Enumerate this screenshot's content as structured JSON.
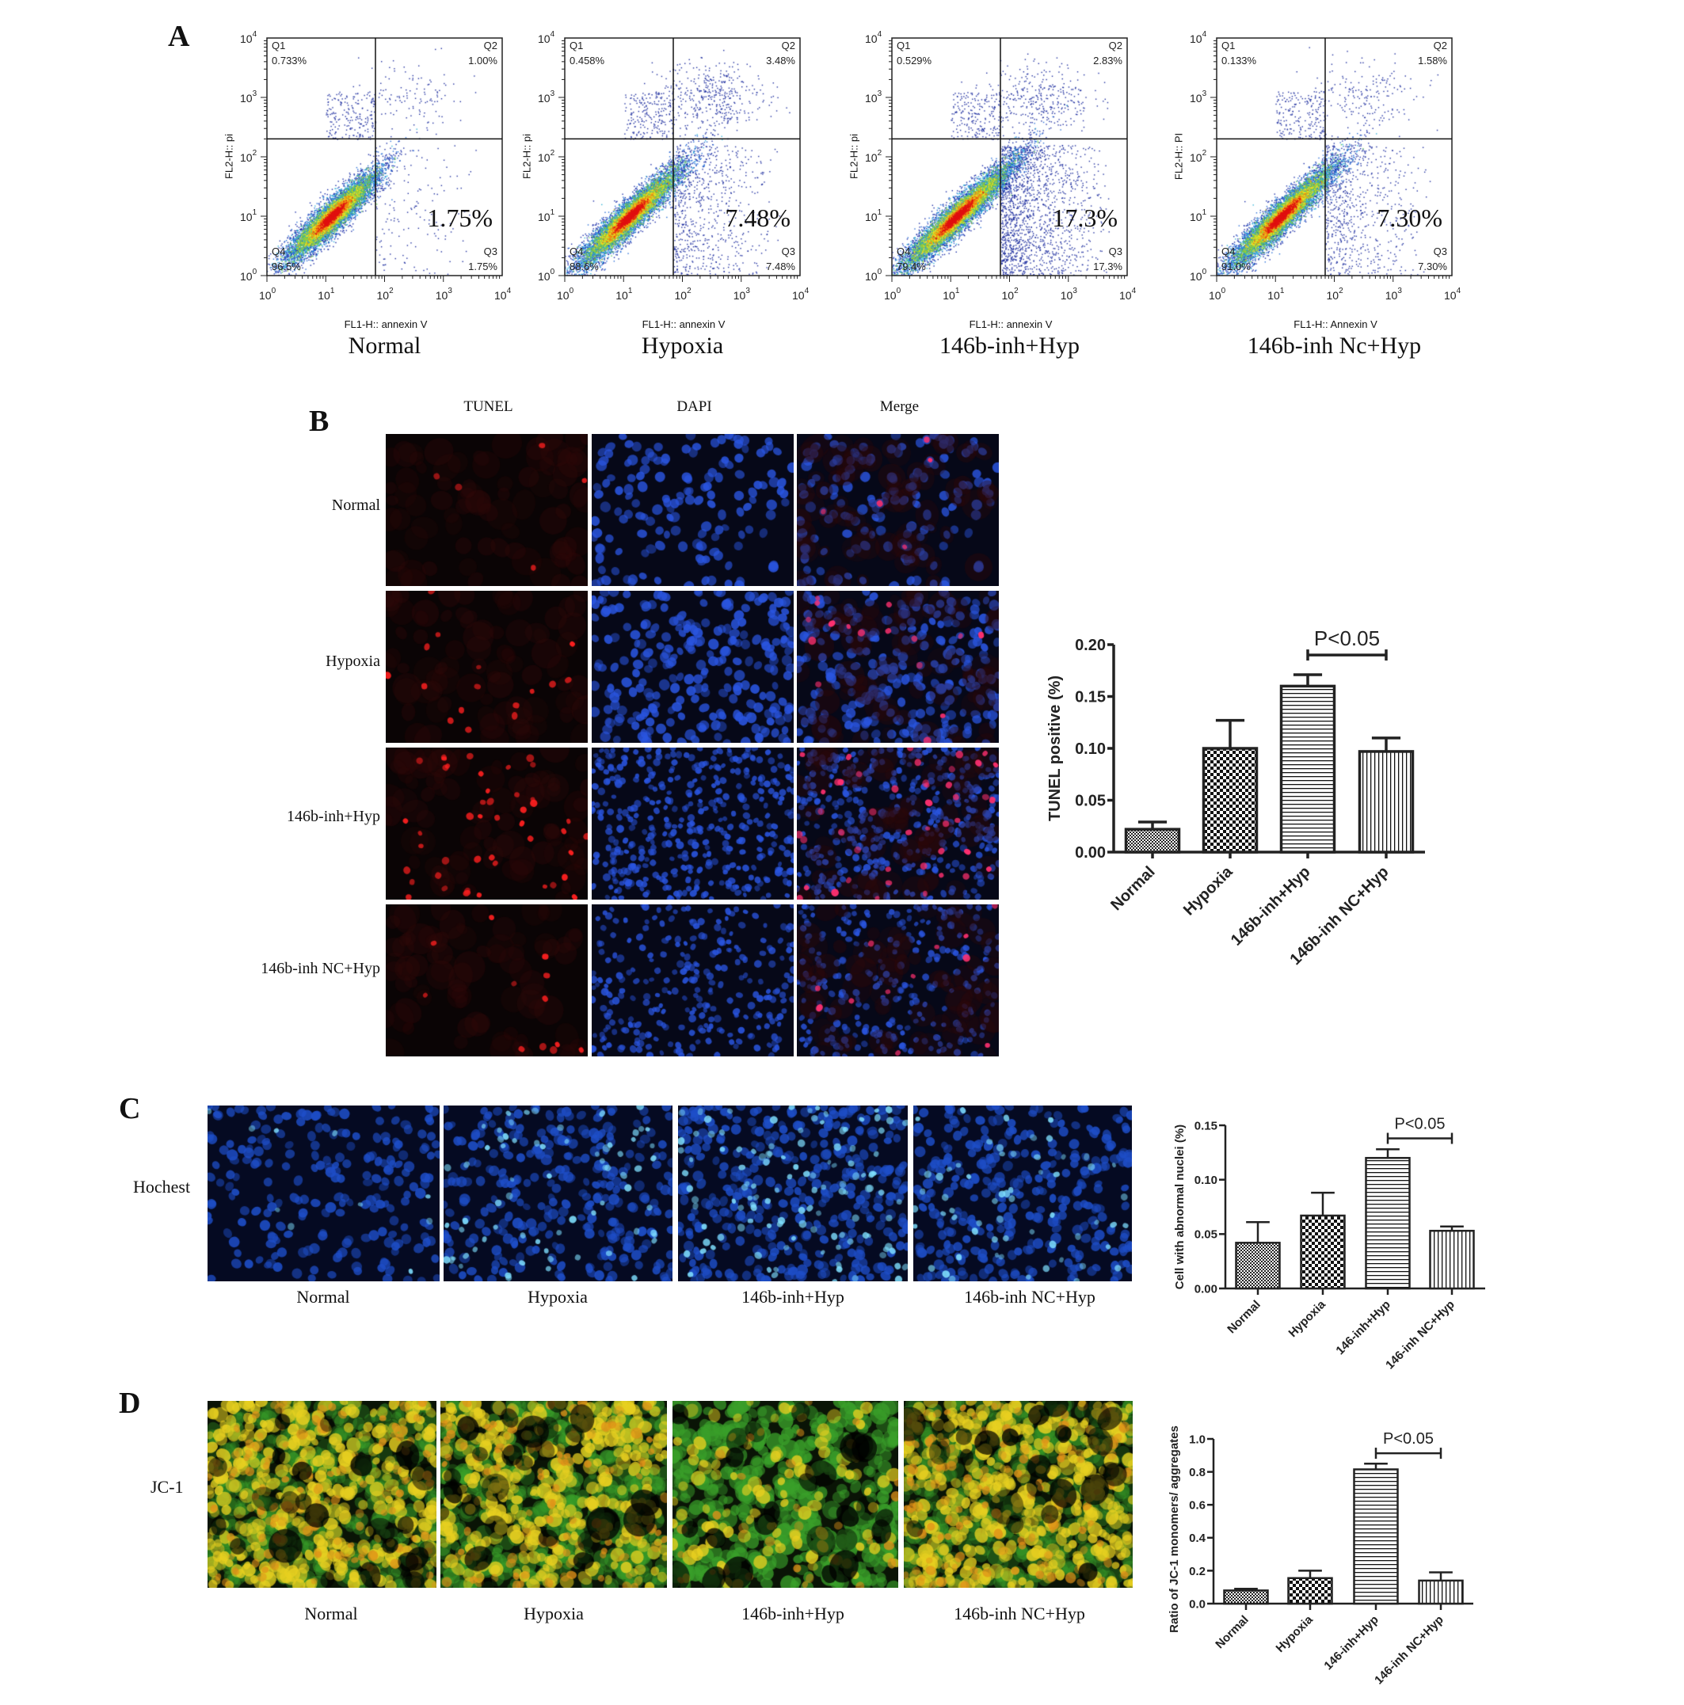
{
  "panels": {
    "A": {
      "letter": "A"
    },
    "B": {
      "letter": "B",
      "columns": [
        "TUNEL",
        "DAPI",
        "Merge"
      ],
      "rows": [
        "Normal",
        "Hypoxia",
        "146b-inh+Hyp",
        "146b-inh NC+Hyp"
      ]
    },
    "C": {
      "letter": "C",
      "row_label": "Hochest",
      "names": [
        "Normal",
        "Hypoxia",
        "146b-inh+Hyp",
        "146b-inh NC+Hyp"
      ]
    },
    "D": {
      "letter": "D",
      "row_label": "JC-1",
      "names": [
        "Normal",
        "Hypoxia",
        "146b-inh+Hyp",
        "146b-inh NC+Hyp"
      ]
    }
  },
  "colors": {
    "tunel_red": "#ff2020",
    "dapi_blue": "#2a55e0",
    "jc1_yellow": "#e8d020",
    "jc1_green": "#3aa02a",
    "hoechst_cyan": "#7fdfff"
  },
  "chart_data": [
    {
      "type": "scatter",
      "panel": "A",
      "name": "Normal",
      "xlabel": "FL1-H:: annexin V",
      "ylabel": "FL2-H:: pi",
      "scale": "log",
      "xlim": [
        1,
        10000
      ],
      "ylim": [
        1,
        10000
      ],
      "tick_base": "10",
      "tick_exponents": [
        "0",
        "1",
        "2",
        "3",
        "4"
      ],
      "gate": {
        "x": 70,
        "y": 200
      },
      "quadrants": {
        "Q1": {
          "label": "Q1",
          "value": "0.733%"
        },
        "Q2": {
          "label": "Q2",
          "value": "1.00%"
        },
        "Q3": {
          "label": "Q3",
          "value": "1.75%"
        },
        "Q4": {
          "label": "Q4",
          "value": "96.5%"
        }
      },
      "highlight": "1.75%"
    },
    {
      "type": "scatter",
      "panel": "A",
      "name": "Hypoxia",
      "xlabel": "FL1-H:: annexin V",
      "ylabel": "FL2-H:: pi",
      "scale": "log",
      "xlim": [
        1,
        10000
      ],
      "ylim": [
        1,
        10000
      ],
      "tick_base": "10",
      "tick_exponents": [
        "0",
        "1",
        "2",
        "3",
        "4"
      ],
      "gate": {
        "x": 70,
        "y": 200
      },
      "quadrants": {
        "Q1": {
          "label": "Q1",
          "value": "0.458%"
        },
        "Q2": {
          "label": "Q2",
          "value": "3.48%"
        },
        "Q3": {
          "label": "Q3",
          "value": "7.48%"
        },
        "Q4": {
          "label": "Q4",
          "value": "88.6%"
        }
      },
      "highlight": "7.48%"
    },
    {
      "type": "scatter",
      "panel": "A",
      "name": "146b-inh+Hyp",
      "xlabel": "FL1-H:: annexin V",
      "ylabel": "FL2-H:: pi",
      "scale": "log",
      "xlim": [
        1,
        10000
      ],
      "ylim": [
        1,
        10000
      ],
      "tick_base": "10",
      "tick_exponents": [
        "0",
        "1",
        "2",
        "3",
        "4"
      ],
      "gate": {
        "x": 70,
        "y": 200
      },
      "quadrants": {
        "Q1": {
          "label": "Q1",
          "value": "0.529%"
        },
        "Q2": {
          "label": "Q2",
          "value": "2.83%"
        },
        "Q3": {
          "label": "Q3",
          "value": "17.3%"
        },
        "Q4": {
          "label": "Q4",
          "value": "79.4%"
        }
      },
      "highlight": "17.3%"
    },
    {
      "type": "scatter",
      "panel": "A",
      "name": "146b-inh Nc+Hyp",
      "xlabel": "FL1-H:: Annexin V",
      "ylabel": "FL2-H:: PI",
      "scale": "log",
      "xlim": [
        1,
        10000
      ],
      "ylim": [
        1,
        10000
      ],
      "tick_base": "10",
      "tick_exponents": [
        "0",
        "1",
        "2",
        "3",
        "4"
      ],
      "gate": {
        "x": 70,
        "y": 200
      },
      "quadrants": {
        "Q1": {
          "label": "Q1",
          "value": "0.133%"
        },
        "Q2": {
          "label": "Q2",
          "value": "1.58%"
        },
        "Q3": {
          "label": "Q3",
          "value": "7.30%"
        },
        "Q4": {
          "label": "Q4",
          "value": "91.0%"
        }
      },
      "highlight": "7.30%"
    },
    {
      "type": "bar",
      "panel": "B",
      "categories": [
        "Normal",
        "Hypoxia",
        "146b-inh+Hyp",
        "146b-inh NC+Hyp"
      ],
      "values": [
        0.022,
        0.1,
        0.16,
        0.097
      ],
      "error_upper": [
        0.029,
        0.127,
        0.171,
        0.11
      ],
      "ylabel": "TUNEL positive (%)",
      "xlabel": "",
      "ylim": [
        0,
        0.2
      ],
      "yticks": [
        "0.00",
        "0.05",
        "0.10",
        "0.15",
        "0.20"
      ],
      "patterns": [
        "fine-check",
        "coarse-check",
        "horizontal",
        "vertical"
      ],
      "annotation": {
        "text": "P<0.05",
        "from": 2,
        "to": 3,
        "y": 0.19
      }
    },
    {
      "type": "bar",
      "panel": "C",
      "categories": [
        "Normal",
        "Hypoxia",
        "146-inh+Hyp",
        "146-inh NC+Hyp"
      ],
      "values": [
        0.042,
        0.067,
        0.12,
        0.053
      ],
      "error_upper": [
        0.061,
        0.088,
        0.128,
        0.057
      ],
      "ylabel": "Cell with abnormal nuclei (%)",
      "xlabel": "",
      "ylim": [
        0,
        0.15
      ],
      "yticks": [
        "0.00",
        "0.05",
        "0.10",
        "0.15"
      ],
      "patterns": [
        "fine-check",
        "coarse-check",
        "horizontal",
        "vertical"
      ],
      "annotation": {
        "text": "P<0.05",
        "from": 2,
        "to": 3,
        "y": 0.138
      }
    },
    {
      "type": "bar",
      "panel": "D",
      "categories": [
        "Normal",
        "Hypoxia",
        "146-inh+Hyp",
        "146-inh NC+Hyp"
      ],
      "values": [
        0.08,
        0.155,
        0.815,
        0.14
      ],
      "error_upper": [
        0.09,
        0.2,
        0.85,
        0.19
      ],
      "ylabel": "Ratio of  JC-1 monomers/ aggregates",
      "xlabel": "",
      "ylim": [
        0,
        1.0
      ],
      "yticks": [
        "0.0",
        "0.2",
        "0.4",
        "0.6",
        "0.8",
        "1.0"
      ],
      "patterns": [
        "fine-check",
        "coarse-check",
        "horizontal",
        "vertical"
      ],
      "annotation": {
        "text": "P<0.05",
        "from": 2,
        "to": 3,
        "y": 0.913
      }
    }
  ]
}
